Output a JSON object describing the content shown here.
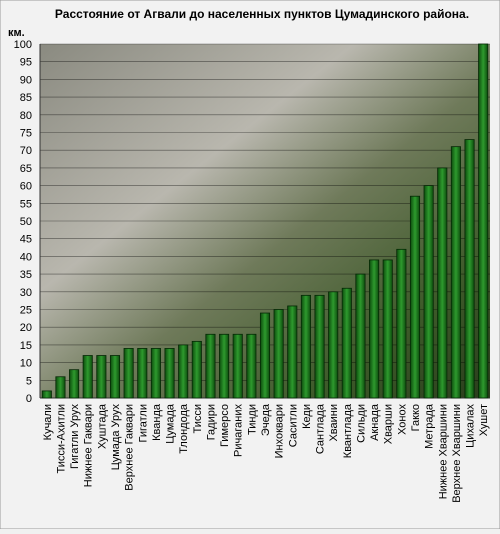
{
  "chart_data": {
    "type": "bar",
    "title": "Расстояние от Агвали до населенных пунктов Цумадинского района.",
    "y_label": "км.",
    "categories": [
      "Кучали",
      "Тисси-Ахитли",
      "Гигатли Урух",
      "Нижнее Гаквари",
      "Хуштада",
      "Цумада Урух",
      "Верхнее Гаквари",
      "Гигатли",
      "Кванда",
      "Цумада",
      "Тлондода",
      "Тисси",
      "Гадири",
      "Гимерсо",
      "Ричаганих",
      "Тинди",
      "Эчеда",
      "Инхоквари",
      "Саситли",
      "Кеди",
      "Сантлада",
      "Хваини",
      "Квантлада",
      "Сильди",
      "Акнада",
      "Хварши",
      "Хонох",
      "Гакко",
      "Метрада",
      "Нижнее Хваршини",
      "Верхнее Хваршини",
      "Цихалах",
      "Хушет"
    ],
    "values": [
      2,
      6,
      8,
      12,
      12,
      12,
      14,
      14,
      14,
      14,
      15,
      16,
      18,
      18,
      18,
      18,
      24,
      25,
      26,
      29,
      29,
      30,
      31,
      35,
      39,
      39,
      42,
      57,
      60,
      65,
      71,
      73,
      100
    ],
    "color": "#1f7a1f",
    "ylim": [
      0,
      100
    ],
    "yticks": [
      0,
      5,
      10,
      15,
      20,
      25,
      30,
      35,
      40,
      45,
      50,
      55,
      60,
      65,
      70,
      75,
      80,
      85,
      90,
      95,
      100
    ],
    "grid": true
  }
}
